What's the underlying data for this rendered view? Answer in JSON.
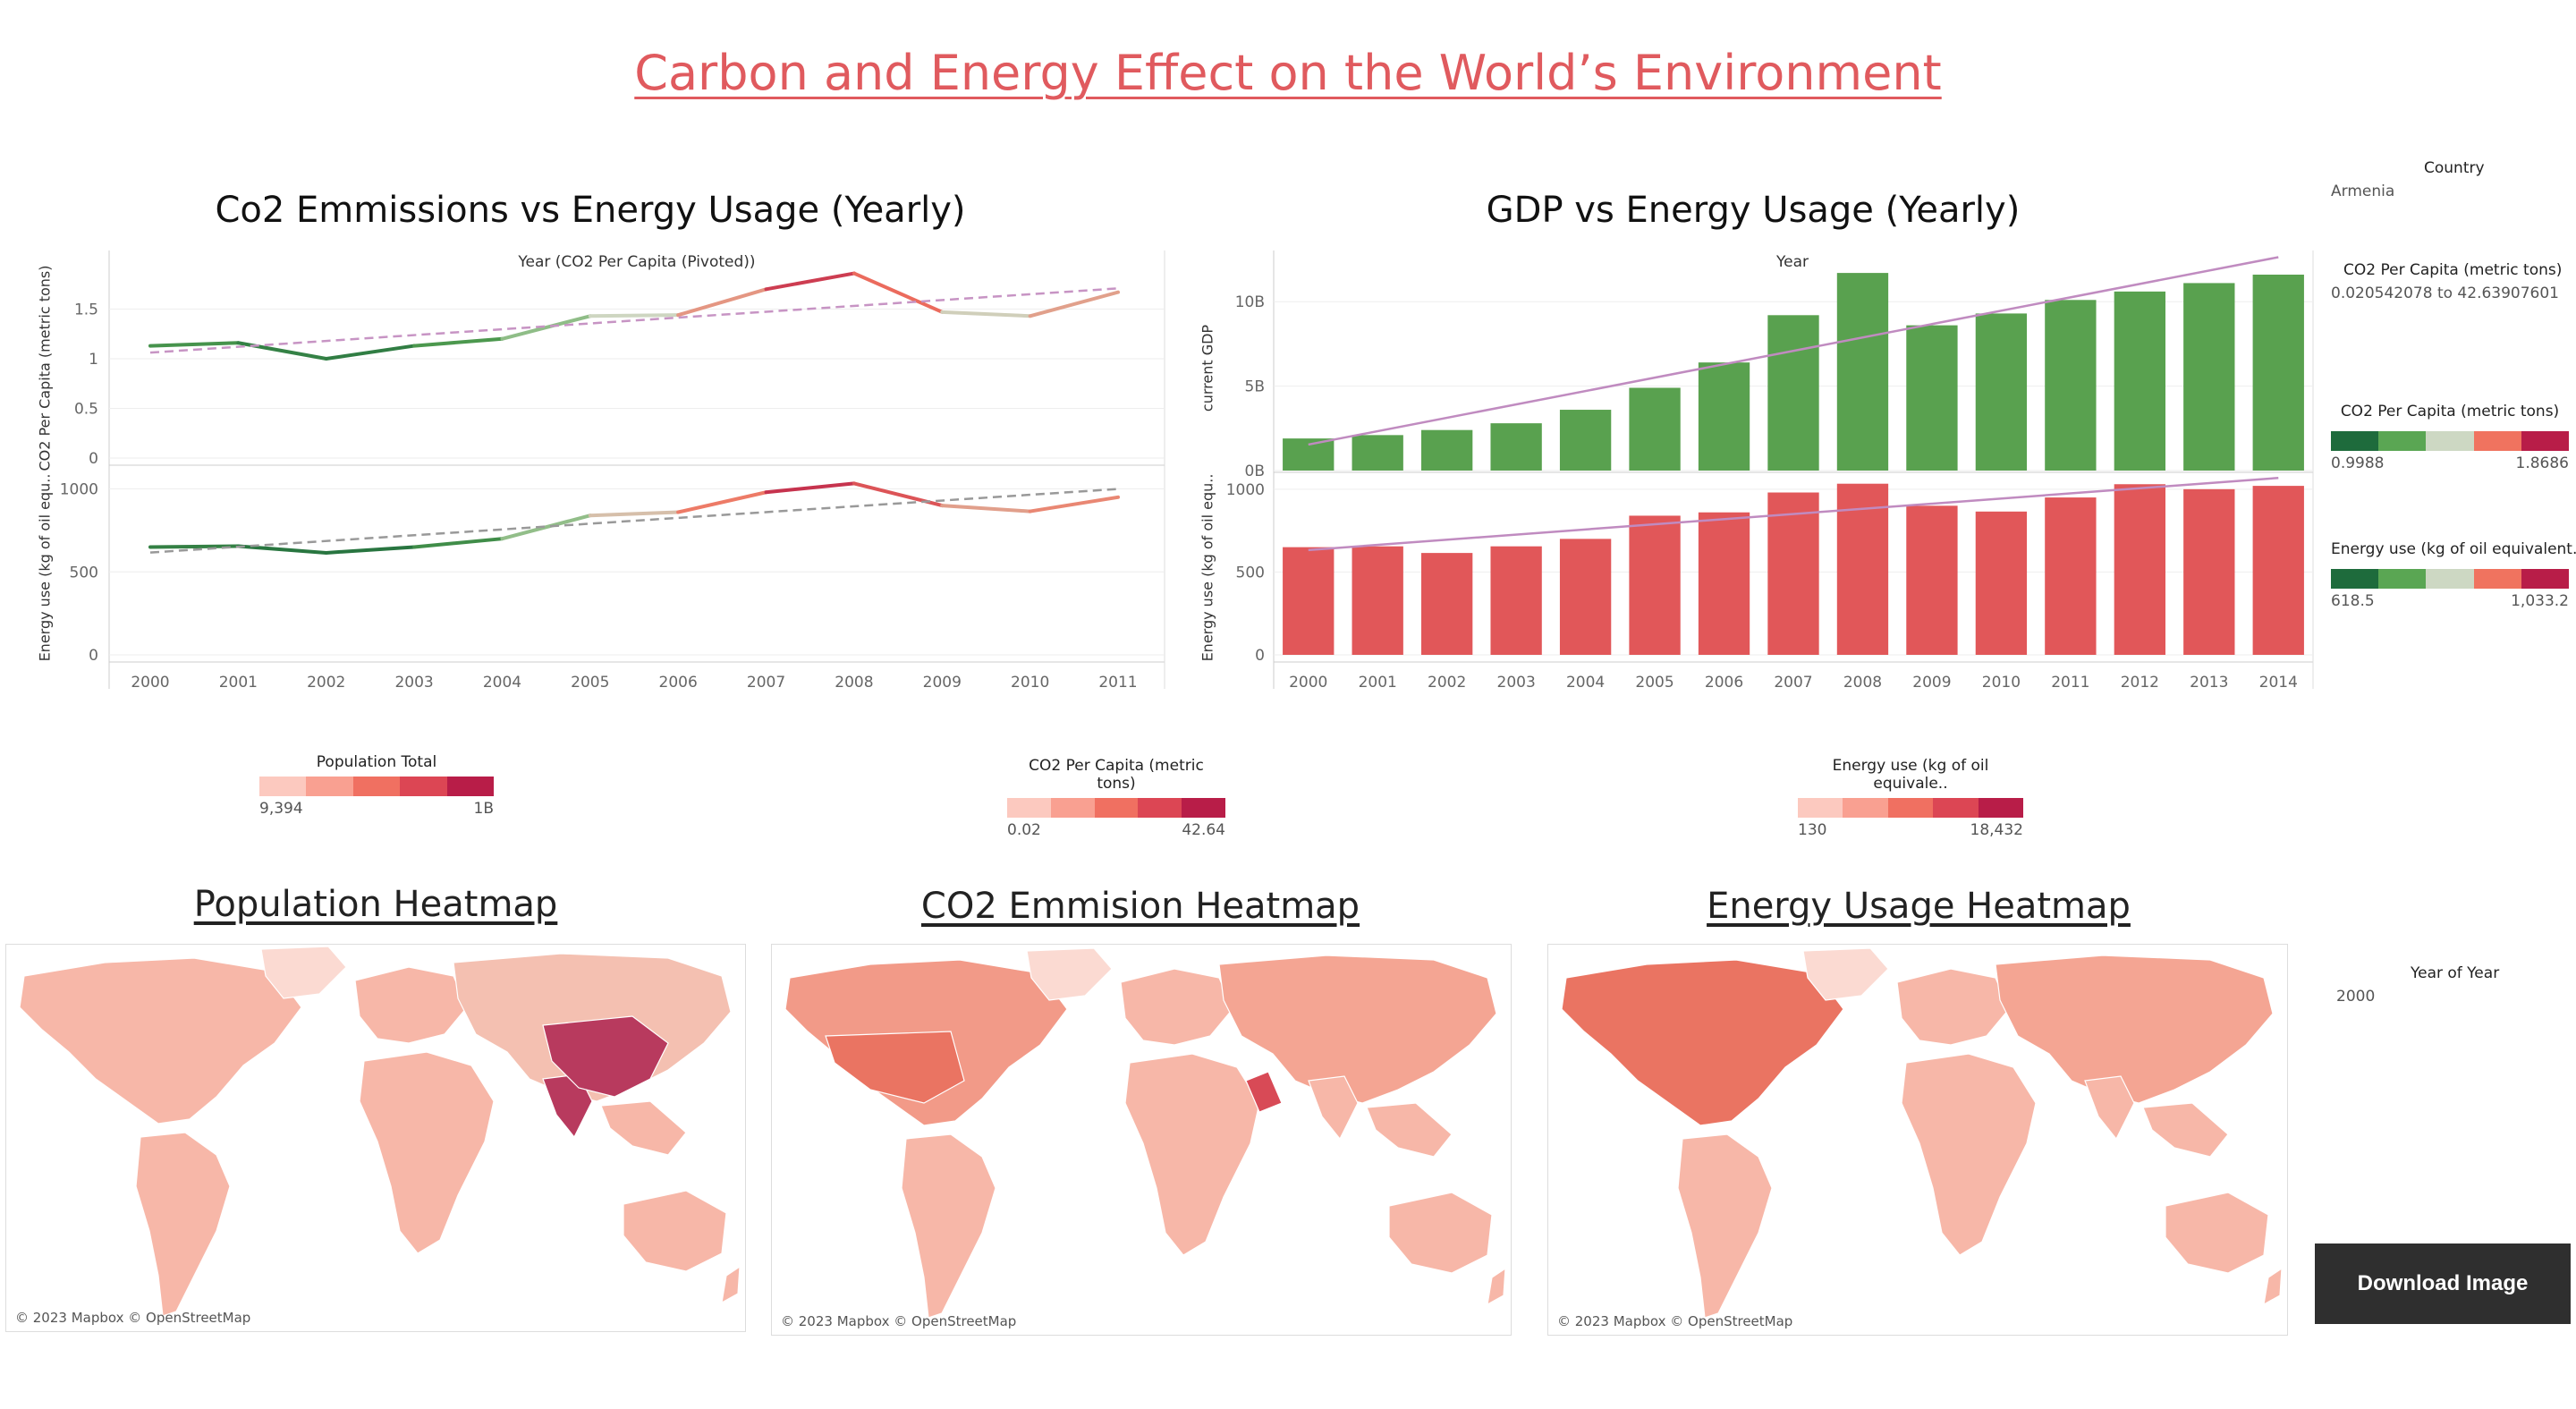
{
  "dashboard": {
    "title": "Carbon and Energy Effect on the World’s Environment"
  },
  "left_chart": {
    "title": "Co2 Emmissions vs Energy Usage (Yearly)",
    "x_header": "Year (CO2 Per Capita (Pivoted))",
    "top_ylabel": "CO2 Per Capita (metric tons)",
    "bottom_ylabel": "Energy use (kg of oil equ..",
    "top_ticks": [
      "0",
      "0.5",
      "1",
      "1.5"
    ],
    "bottom_ticks": [
      "0",
      "500",
      "1000"
    ]
  },
  "right_chart": {
    "title": "GDP vs Energy Usage (Yearly)",
    "x_header": "Year",
    "top_ylabel": "current GDP",
    "bottom_ylabel": "Energy use (kg of oil equ..",
    "top_ticks": [
      "0B",
      "5B",
      "10B"
    ],
    "bottom_ticks": [
      "0",
      "500",
      "1000"
    ]
  },
  "chart_data": [
    {
      "type": "line",
      "title": "Co2 Emmissions vs Energy Usage (Yearly)",
      "xlabel": "Year (CO2 Per Capita (Pivoted))",
      "x": [
        2000,
        2001,
        2002,
        2003,
        2004,
        2005,
        2006,
        2007,
        2008,
        2009,
        2010,
        2011
      ],
      "series": [
        {
          "name": "CO2 Per Capita (metric tons)",
          "values": [
            1.13,
            1.16,
            1.0,
            1.13,
            1.2,
            1.43,
            1.44,
            1.7,
            1.86,
            1.47,
            1.43,
            1.67
          ],
          "ylim": [
            0,
            2.0
          ]
        },
        {
          "name": "Energy use (kg of oil equivalent per capita)",
          "values": [
            650,
            655,
            615,
            650,
            700,
            840,
            860,
            980,
            1033,
            900,
            865,
            950
          ],
          "ylim": [
            0,
            1100
          ]
        }
      ],
      "trend_lines": true
    },
    {
      "type": "bar",
      "title": "GDP vs Energy Usage (Yearly)",
      "xlabel": "Year",
      "categories": [
        "2000",
        "2001",
        "2002",
        "2003",
        "2004",
        "2005",
        "2006",
        "2007",
        "2008",
        "2009",
        "2010",
        "2011",
        "2012",
        "2013",
        "2014"
      ],
      "series": [
        {
          "name": "current GDP",
          "values": [
            1.9,
            2.1,
            2.4,
            2.8,
            3.6,
            4.9,
            6.4,
            9.2,
            11.7,
            8.6,
            9.3,
            10.1,
            10.6,
            11.1,
            11.6
          ],
          "unit": "B",
          "ylim": [
            0,
            12.5
          ]
        },
        {
          "name": "Energy use (kg of oil equ..",
          "values": [
            650,
            655,
            615,
            655,
            700,
            840,
            860,
            980,
            1033,
            900,
            865,
            950,
            1030,
            1000,
            1020
          ],
          "ylim": [
            0,
            1080
          ]
        }
      ],
      "colors": {
        "gdp": "#59a14f",
        "energy": "#e15759"
      },
      "trend_lines": true
    }
  ],
  "legends": {
    "population": {
      "title": "Population Total",
      "min": "9,394",
      "max": "1B",
      "colors": [
        "#fcc9bf",
        "#f9a091",
        "#f07061",
        "#dc4654",
        "#b81d48"
      ]
    },
    "co2": {
      "title": "CO2 Per Capita (metric tons)",
      "min": "0.02",
      "max": "42.64",
      "colors": [
        "#fcc9bf",
        "#f9a091",
        "#f07061",
        "#dc4654",
        "#b81d48"
      ]
    },
    "energy": {
      "title": "Energy use (kg of oil equivale..",
      "min": "130",
      "max": "18,432",
      "colors": [
        "#fcc9bf",
        "#f9a091",
        "#f07061",
        "#dc4654",
        "#b81d48"
      ]
    }
  },
  "heatmaps": {
    "population_title": "Population Heatmap",
    "co2_title": "CO2 Emmision Heatmap",
    "energy_title": "Energy Usage Heatmap",
    "credit": "© 2023 Mapbox © OpenStreetMap",
    "population_credit": "© 2023 Mapbox © OpenStreetMap"
  },
  "sidebar": {
    "country_title": "Country",
    "country_value": "Armenia",
    "co2_filter_title": "CO2 Per Capita (metric tons)",
    "co2_filter_value": "0.020542078 to 42.63907601",
    "co2_color_title": "CO2 Per Capita (metric tons)",
    "co2_color_min": "0.9988",
    "co2_color_max": "1.8686",
    "energy_color_title": "Energy use (kg of oil equivalent..",
    "energy_color_min": "618.5",
    "energy_color_max": "1,033.2",
    "diverging_colors": [
      "#1e6b3c",
      "#5aa653",
      "#cdd8c3",
      "#f0735f",
      "#b81d48"
    ],
    "year_title": "Year of Year",
    "year_value": "2000",
    "download_label": "Download Image"
  }
}
